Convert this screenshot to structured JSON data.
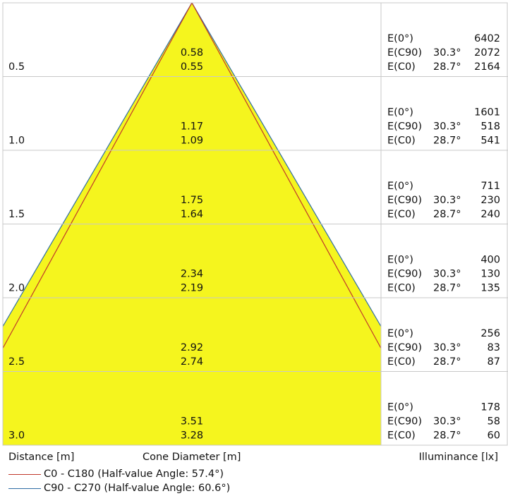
{
  "chart_data": {
    "type": "table",
    "distances": [
      "0.5",
      "1.0",
      "1.5",
      "2.0",
      "2.5",
      "3.0"
    ],
    "cone_diameter_c90": [
      "0.58",
      "1.17",
      "1.75",
      "2.34",
      "2.92",
      "3.51"
    ],
    "cone_diameter_c0": [
      "0.55",
      "1.09",
      "1.64",
      "2.19",
      "2.74",
      "3.28"
    ],
    "illuminance": [
      {
        "e0": "6402",
        "e_c90": "2072",
        "e_c0": "2164"
      },
      {
        "e0": "1601",
        "e_c90": "518",
        "e_c0": "541"
      },
      {
        "e0": "711",
        "e_c90": "230",
        "e_c0": "240"
      },
      {
        "e0": "400",
        "e_c90": "130",
        "e_c0": "135"
      },
      {
        "e0": "256",
        "e_c90": "83",
        "e_c0": "87"
      },
      {
        "e0": "178",
        "e_c90": "58",
        "e_c0": "60"
      }
    ],
    "row_labels": {
      "e0": "E(0°)",
      "e_c90": "E(C90)",
      "e_c0": "E(C0)"
    },
    "angles": {
      "c90": "30.3°",
      "c0": "28.7°"
    },
    "half_value_angles_deg": {
      "c0_c180": 57.4,
      "c90_c270": 60.6
    },
    "axis_labels": {
      "distance": "Distance [m]",
      "cone": "Cone Diameter [m]",
      "illuminance": "Illuminance [lx]"
    },
    "legend": [
      {
        "label": "C0 - C180 (Half-value Angle: 57.4°)",
        "color": "#c0392b"
      },
      {
        "label": "C90 - C270 (Half-value Angle: 60.6°)",
        "color": "#2e6da4"
      }
    ],
    "colors": {
      "cone_fill": "#f5f51e",
      "grid": "#c8c8c8"
    }
  }
}
